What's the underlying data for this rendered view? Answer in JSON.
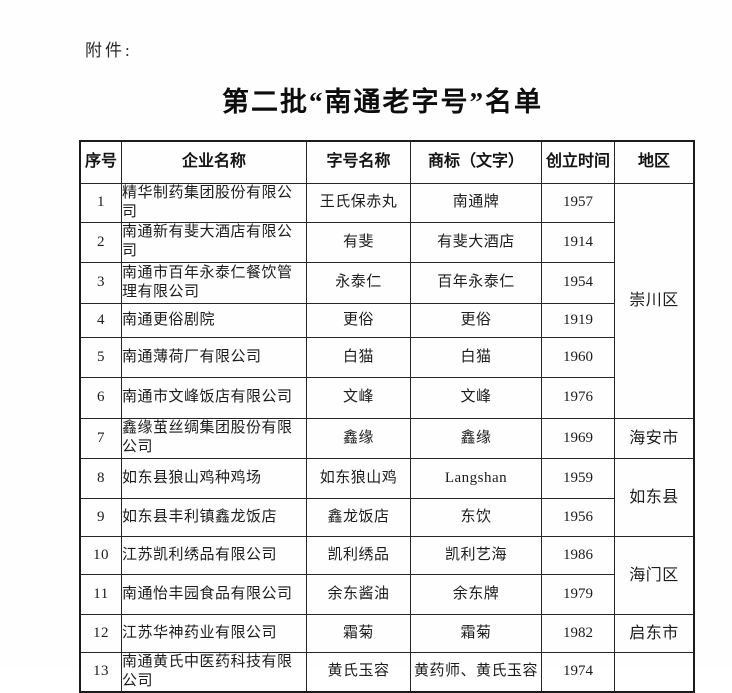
{
  "page": {
    "attachment_label": "附件:",
    "title": "第二批“南通老字号”名单"
  },
  "table": {
    "headers": {
      "seq": "序号",
      "company": "企业名称",
      "brand": "字号名称",
      "trademark": "商标（文字）",
      "founded": "创立时间",
      "region": "地区"
    },
    "rows": [
      {
        "seq": "1",
        "company": "精华制药集团股份有限公司",
        "brand": "王氏保赤丸",
        "trademark": "南通牌",
        "founded": "1957",
        "region": "崇川区",
        "region_rowspan": 6
      },
      {
        "seq": "2",
        "company": "南通新有斐大酒店有限公司",
        "brand": "有斐",
        "trademark": "有斐大酒店",
        "founded": "1914"
      },
      {
        "seq": "3",
        "company": "南通市百年永泰仁餐饮管理有限公司",
        "brand": "永泰仁",
        "trademark": "百年永泰仁",
        "founded": "1954"
      },
      {
        "seq": "4",
        "company": "南通更俗剧院",
        "brand": "更俗",
        "trademark": "更俗",
        "founded": "1919"
      },
      {
        "seq": "5",
        "company": "南通薄荷厂有限公司",
        "brand": "白猫",
        "trademark": "白猫",
        "founded": "1960"
      },
      {
        "seq": "6",
        "company": "南通市文峰饭店有限公司",
        "brand": "文峰",
        "trademark": "文峰",
        "founded": "1976"
      },
      {
        "seq": "7",
        "company": "鑫缘茧丝绸集团股份有限公司",
        "brand": "鑫缘",
        "trademark": "鑫缘",
        "founded": "1969",
        "region": "海安市",
        "region_rowspan": 1
      },
      {
        "seq": "8",
        "company": "如东县狼山鸡种鸡场",
        "brand": "如东狼山鸡",
        "trademark": "Langshan",
        "founded": "1959",
        "region": "如东县",
        "region_rowspan": 2
      },
      {
        "seq": "9",
        "company": "如东县丰利镇鑫龙饭店",
        "brand": "鑫龙饭店",
        "trademark": "东饮",
        "founded": "1956"
      },
      {
        "seq": "10",
        "company": "江苏凯利绣品有限公司",
        "brand": "凯利绣品",
        "trademark": "凯利艺海",
        "founded": "1986",
        "region": "海门区",
        "region_rowspan": 2
      },
      {
        "seq": "11",
        "company": "南通怡丰园食品有限公司",
        "brand": "余东酱油",
        "trademark": "余东牌",
        "founded": "1979"
      },
      {
        "seq": "12",
        "company": "江苏华神药业有限公司",
        "brand": "霜菊",
        "trademark": "霜菊",
        "founded": "1982",
        "region": "启东市",
        "region_rowspan": 1
      },
      {
        "seq": "13",
        "company": "南通黄氏中医药科技有限公司",
        "brand": "黄氏玉容",
        "trademark": "黄药师、黄氏玉容",
        "founded": "1974",
        "region": "",
        "region_rowspan": 1
      }
    ]
  }
}
